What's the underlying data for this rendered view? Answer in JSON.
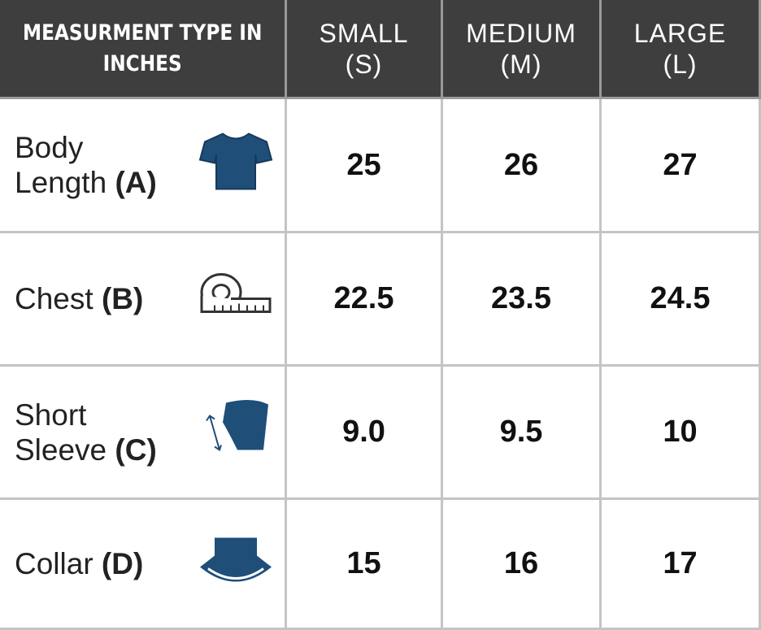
{
  "table": {
    "header": [
      [
        "MEASURMENT TYPE IN",
        "INCHES"
      ],
      [
        "SMALL",
        "(S)"
      ],
      [
        "MEDIUM",
        "(M)"
      ],
      [
        "LARGE",
        "(L)"
      ]
    ],
    "rows": [
      {
        "lines": [
          "Body",
          "Length"
        ],
        "code": "(A)",
        "values": [
          "25",
          "26",
          "27"
        ]
      },
      {
        "lines": [
          "Chest"
        ],
        "code": "(B)",
        "values": [
          "22.5",
          "23.5",
          "24.5"
        ]
      },
      {
        "lines": [
          "Short",
          "Sleeve"
        ],
        "code": "(C)",
        "values": [
          "9.0",
          "9.5",
          "10"
        ]
      },
      {
        "lines": [
          "Collar"
        ],
        "code": "(D)",
        "values": [
          "15",
          "16",
          "17"
        ]
      }
    ]
  }
}
